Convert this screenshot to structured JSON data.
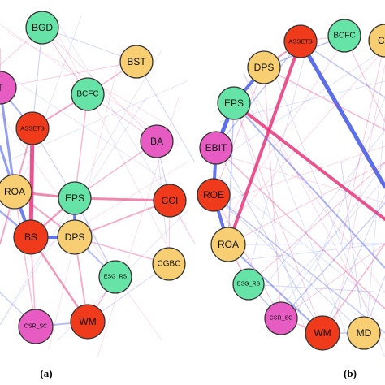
{
  "colors": {
    "green": "#66e3a6",
    "yellow": "#f7cf72",
    "red": "#ef3a1c",
    "pink": "#e75cc3",
    "positive_edge": "#e8357a",
    "negative_edge": "#4a5ee8"
  },
  "panels": [
    {
      "label": "(a)",
      "nodes": [
        {
          "id": "BGD",
          "label": "BGD",
          "color": "green"
        },
        {
          "id": "BST",
          "label": "BST",
          "color": "yellow"
        },
        {
          "id": "T",
          "label": "T",
          "color": "pink"
        },
        {
          "id": "BCFC",
          "label": "BCFC",
          "color": "green"
        },
        {
          "id": "ASSETS",
          "label": "ASSETS",
          "color": "red"
        },
        {
          "id": "BA",
          "label": "BA",
          "color": "pink"
        },
        {
          "id": "ROA",
          "label": "ROA",
          "color": "yellow"
        },
        {
          "id": "EPS",
          "label": "EPS",
          "color": "green"
        },
        {
          "id": "CCI",
          "label": "CCI",
          "color": "red"
        },
        {
          "id": "BS",
          "label": "BS",
          "color": "red"
        },
        {
          "id": "DPS",
          "label": "DPS",
          "color": "yellow"
        },
        {
          "id": "CGBC",
          "label": "CGBC",
          "color": "yellow"
        },
        {
          "id": "ESG_RS",
          "label": "ESG_RS",
          "color": "green"
        },
        {
          "id": "CSR_SC",
          "label": "CSR_SC",
          "color": "pink"
        },
        {
          "id": "WM",
          "label": "WM",
          "color": "red"
        }
      ]
    },
    {
      "label": "(b)",
      "nodes": [
        {
          "id": "ASSETS",
          "label": "ASSETS",
          "color": "red"
        },
        {
          "id": "BCFC",
          "label": "BCFC",
          "color": "green"
        },
        {
          "id": "CG",
          "label": "CG",
          "color": "yellow"
        },
        {
          "id": "DPS",
          "label": "DPS",
          "color": "yellow"
        },
        {
          "id": "EPS",
          "label": "EPS",
          "color": "green"
        },
        {
          "id": "EBIT",
          "label": "EBIT",
          "color": "pink"
        },
        {
          "id": "ROE",
          "label": "ROE",
          "color": "red"
        },
        {
          "id": "ROA",
          "label": "ROA",
          "color": "yellow"
        },
        {
          "id": "ESG_RS",
          "label": "ESG_RS",
          "color": "green"
        },
        {
          "id": "CSR_SC",
          "label": "CSR_SC",
          "color": "pink"
        },
        {
          "id": "WM",
          "label": "WM",
          "color": "red"
        },
        {
          "id": "MD",
          "label": "MD",
          "color": "yellow"
        }
      ]
    }
  ]
}
